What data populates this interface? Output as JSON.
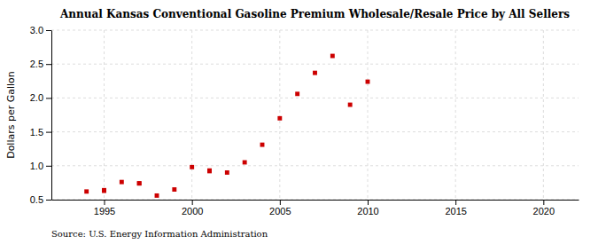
{
  "chart_data": {
    "type": "scatter",
    "title": "Annual Kansas Conventional Gasoline Premium Wholesale/Resale Price by All Sellers",
    "y_label": "Dollars per Gallon",
    "annotations": [
      "Source: U.S. Energy Information Administration"
    ],
    "x": [
      1994,
      1995,
      1995,
      1996,
      1997,
      1997,
      1998,
      1999,
      2000,
      2001,
      2001,
      2002,
      2003,
      2004,
      2005,
      2006,
      2007,
      2008,
      2009,
      2010
    ],
    "values": [
      0.62,
      0.63,
      0.64,
      0.76,
      0.74,
      0.74,
      0.56,
      0.65,
      0.98,
      0.92,
      0.93,
      0.9,
      1.05,
      1.31,
      1.7,
      2.06,
      2.37,
      2.62,
      1.9,
      2.24
    ],
    "color": "#cc0000",
    "marker": "square",
    "grid": true,
    "xlim": [
      1992,
      2022
    ],
    "ylim": [
      0.5,
      3.0
    ],
    "xticks": [
      1995,
      2000,
      2005,
      2010,
      2015,
      2020
    ],
    "yticks": [
      0.5,
      {
        "value": 1,
        "label": "1.0"
      },
      1.5,
      {
        "value": 2,
        "label": "2.0"
      },
      2.5,
      {
        "value": 3,
        "label": "3.0"
      }
    ]
  }
}
